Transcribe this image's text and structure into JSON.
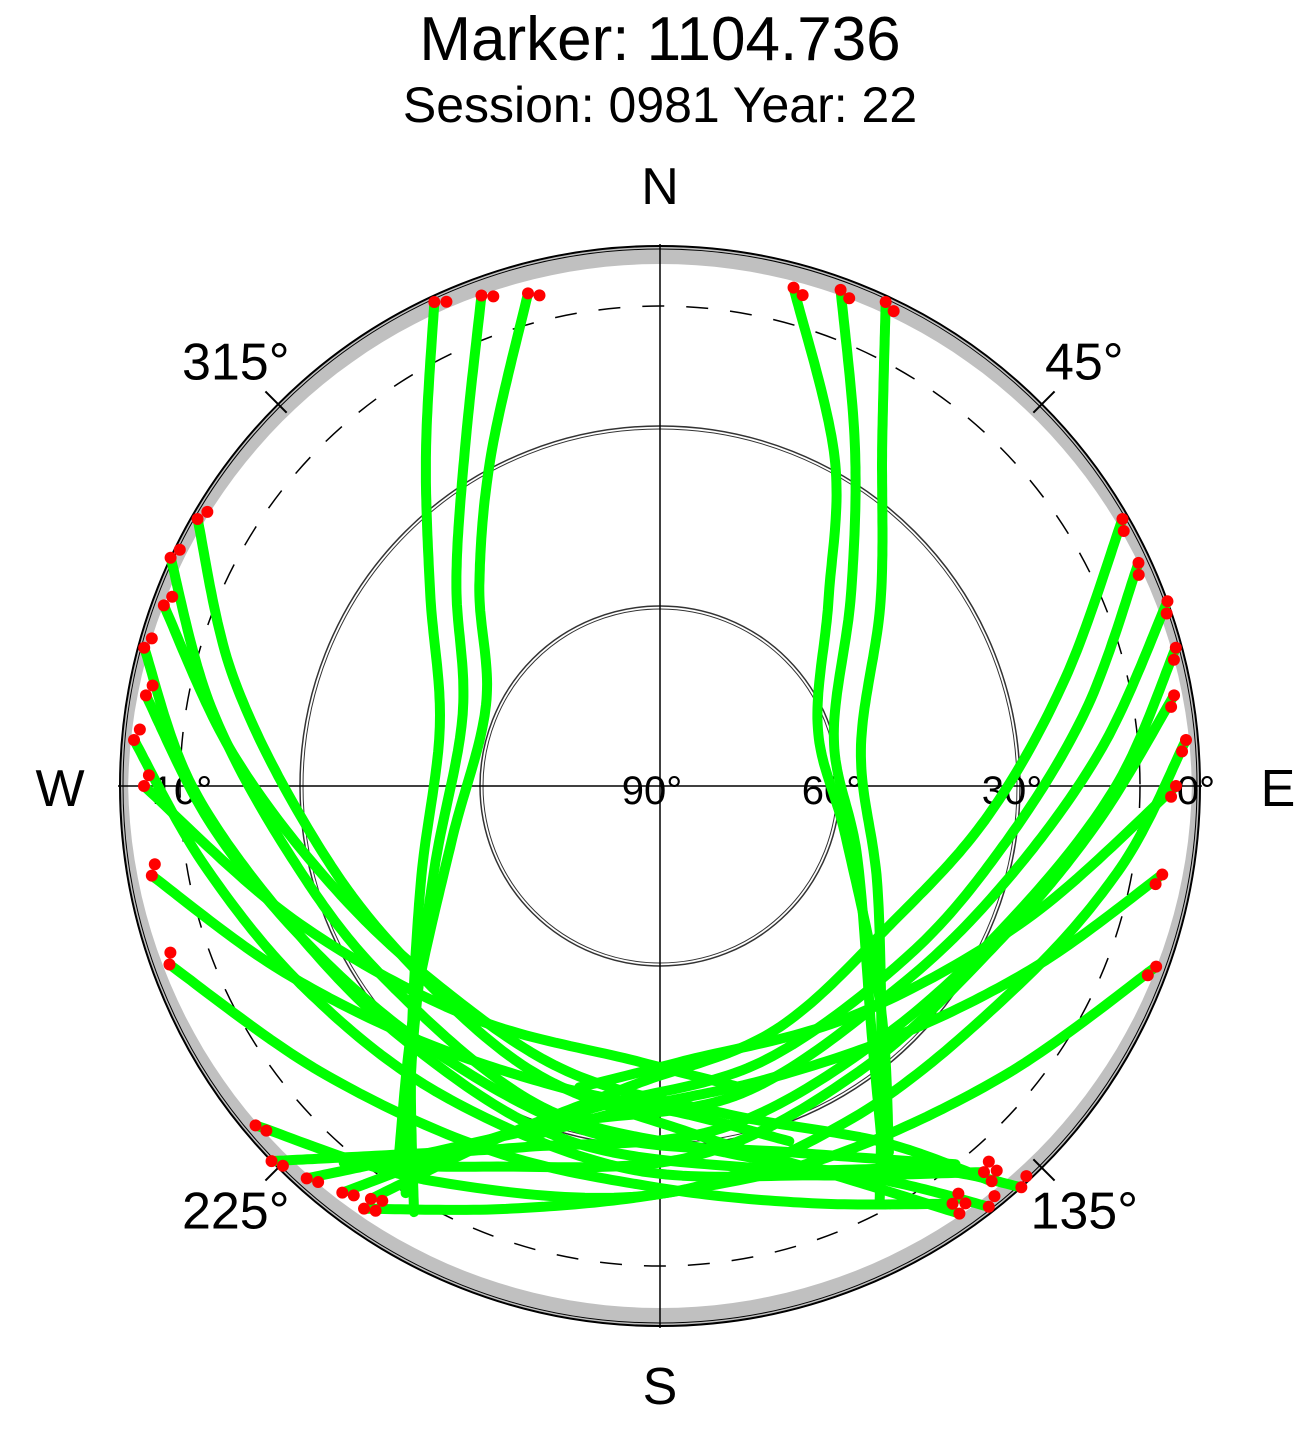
{
  "chart_data": {
    "type": "scatter",
    "projection": "polar-skyplot",
    "title": "Marker: 1104.736",
    "subtitle": "Session: 0981 Year: 22",
    "directions": {
      "north": "N",
      "south": "S",
      "east": "E",
      "west": "W"
    },
    "azimuth_tick_labels": [
      {
        "azimuth": 45,
        "label": "45°"
      },
      {
        "azimuth": 135,
        "label": "135°"
      },
      {
        "azimuth": 225,
        "label": "225°"
      },
      {
        "azimuth": 315,
        "label": "315°"
      }
    ],
    "elevation_tick_labels": [
      {
        "elevation": 0,
        "label": "0°"
      },
      {
        "elevation": 30,
        "label": "30°"
      },
      {
        "elevation": 60,
        "label": "60°"
      },
      {
        "elevation": 90,
        "label": "90°"
      },
      {
        "elevation": 10,
        "label": "10°"
      }
    ],
    "elevation_circles": [
      30,
      60
    ],
    "cutoff_elevation_dashed": 10,
    "obstruction_mask_elevation": 3,
    "colors": {
      "track": "#00ff00",
      "low_elevation_point": "#ff0000",
      "mask": "#c0c0c0",
      "axes": "#000000",
      "cutoff": "#000000"
    },
    "series": [
      {
        "tracks": [
          {
            "points": [
              [
                20,
                2
              ],
              [
                30,
                25
              ],
              [
                45,
                45
              ],
              [
                75,
                60
              ],
              [
                110,
                55
              ],
              [
                140,
                35
              ],
              [
                150,
                15
              ]
            ]
          },
          {
            "points": [
              [
                25,
                1
              ],
              [
                33,
                22
              ],
              [
                50,
                42
              ],
              [
                80,
                56
              ],
              [
                115,
                50
              ],
              [
                142,
                30
              ],
              [
                152,
                12
              ]
            ]
          },
          {
            "points": [
              [
                15,
                4
              ],
              [
                28,
                28
              ],
              [
                42,
                48
              ],
              [
                70,
                62
              ],
              [
                105,
                58
              ],
              [
                135,
                38
              ],
              [
                148,
                18
              ]
            ]
          },
          {
            "points": [
              [
                340,
                3
              ],
              [
                330,
                25
              ],
              [
                315,
                42
              ],
              [
                290,
                55
              ],
              [
                250,
                50
              ],
              [
                225,
                32
              ],
              [
                212,
                10
              ]
            ]
          },
          {
            "points": [
              [
                335,
                1
              ],
              [
                325,
                22
              ],
              [
                310,
                40
              ],
              [
                285,
                52
              ],
              [
                248,
                47
              ],
              [
                222,
                28
              ],
              [
                210,
                8
              ]
            ]
          },
          {
            "points": [
              [
                345,
                5
              ],
              [
                333,
                28
              ],
              [
                318,
                45
              ],
              [
                295,
                58
              ],
              [
                255,
                54
              ],
              [
                228,
                35
              ],
              [
                215,
                14
              ]
            ]
          },
          {
            "points": [
              [
                60,
                1
              ],
              [
                75,
                20
              ],
              [
                95,
                35
              ],
              [
                120,
                45
              ],
              [
                155,
                45
              ],
              [
                185,
                40
              ],
              [
                205,
                25
              ],
              [
                215,
                6
              ]
            ]
          },
          {
            "points": [
              [
                65,
                2
              ],
              [
                80,
                18
              ],
              [
                100,
                32
              ],
              [
                125,
                40
              ],
              [
                160,
                41
              ],
              [
                190,
                36
              ],
              [
                208,
                22
              ],
              [
                218,
                4
              ]
            ]
          },
          {
            "points": [
              [
                70,
                0
              ],
              [
                85,
                16
              ],
              [
                105,
                30
              ],
              [
                130,
                38
              ],
              [
                165,
                37
              ],
              [
                195,
                32
              ],
              [
                212,
                18
              ],
              [
                222,
                2
              ]
            ]
          },
          {
            "points": [
              [
                75,
                1
              ],
              [
                90,
                14
              ],
              [
                110,
                27
              ],
              [
                138,
                34
              ],
              [
                170,
                32
              ],
              [
                200,
                26
              ],
              [
                216,
                14
              ],
              [
                226,
                0
              ]
            ]
          },
          {
            "points": [
              [
                80,
                3
              ],
              [
                95,
                17
              ],
              [
                115,
                28
              ],
              [
                145,
                32
              ],
              [
                175,
                28
              ],
              [
                205,
                20
              ],
              [
                220,
                8
              ]
            ]
          },
          {
            "points": [
              [
                85,
                2
              ],
              [
                100,
                12
              ],
              [
                120,
                22
              ],
              [
                150,
                26
              ],
              [
                180,
                22
              ],
              [
                210,
                14
              ],
              [
                230,
                2
              ]
            ]
          },
          {
            "points": [
              [
                300,
                1
              ],
              [
                285,
                16
              ],
              [
                265,
                30
              ],
              [
                240,
                38
              ],
              [
                205,
                38
              ],
              [
                175,
                32
              ],
              [
                155,
                18
              ],
              [
                145,
                3
              ]
            ]
          },
          {
            "points": [
              [
                295,
                0
              ],
              [
                280,
                14
              ],
              [
                260,
                27
              ],
              [
                235,
                34
              ],
              [
                200,
                33
              ],
              [
                170,
                28
              ],
              [
                150,
                14
              ],
              [
                142,
                1
              ]
            ]
          },
          {
            "points": [
              [
                290,
                2
              ],
              [
                275,
                18
              ],
              [
                255,
                32
              ],
              [
                230,
                40
              ],
              [
                198,
                40
              ],
              [
                168,
                34
              ],
              [
                148,
                20
              ],
              [
                140,
                4
              ]
            ]
          },
          {
            "points": [
              [
                285,
                1
              ],
              [
                270,
                12
              ],
              [
                250,
                24
              ],
              [
                225,
                30
              ],
              [
                195,
                29
              ],
              [
                165,
                24
              ],
              [
                145,
                12
              ],
              [
                138,
                0
              ]
            ]
          },
          {
            "points": [
              [
                280,
                3
              ],
              [
                265,
                15
              ],
              [
                245,
                26
              ],
              [
                220,
                32
              ],
              [
                190,
                31
              ],
              [
                160,
                25
              ],
              [
                142,
                10
              ]
            ]
          },
          {
            "points": [
              [
                275,
                2
              ],
              [
                260,
                13
              ],
              [
                240,
                22
              ],
              [
                215,
                27
              ],
              [
                185,
                26
              ],
              [
                158,
                20
              ],
              [
                140,
                6
              ]
            ]
          },
          {
            "points": [
              [
                100,
                5
              ],
              [
                115,
                20
              ],
              [
                135,
                32
              ],
              [
                160,
                38
              ],
              [
                185,
                36
              ],
              [
                200,
                28
              ]
            ]
          },
          {
            "points": [
              [
                260,
                4
              ],
              [
                245,
                19
              ],
              [
                225,
                31
              ],
              [
                200,
                37
              ],
              [
                175,
                35
              ],
              [
                160,
                27
              ]
            ]
          },
          {
            "points": [
              [
                110,
                2
              ],
              [
                130,
                15
              ],
              [
                155,
                22
              ],
              [
                180,
                22
              ],
              [
                200,
                15
              ],
              [
                215,
                4
              ]
            ]
          },
          {
            "points": [
              [
                250,
                3
              ],
              [
                230,
                16
              ],
              [
                205,
                23
              ],
              [
                180,
                23
              ],
              [
                160,
                16
              ],
              [
                145,
                5
              ]
            ]
          },
          {
            "points": [
              [
                90,
                4
              ],
              [
                110,
                25
              ],
              [
                140,
                40
              ],
              [
                175,
                44
              ],
              [
                195,
                38
              ]
            ]
          },
          {
            "points": [
              [
                270,
                4
              ],
              [
                250,
                25
              ],
              [
                220,
                40
              ],
              [
                185,
                44
              ],
              [
                165,
                38
              ]
            ]
          }
        ]
      }
    ]
  }
}
